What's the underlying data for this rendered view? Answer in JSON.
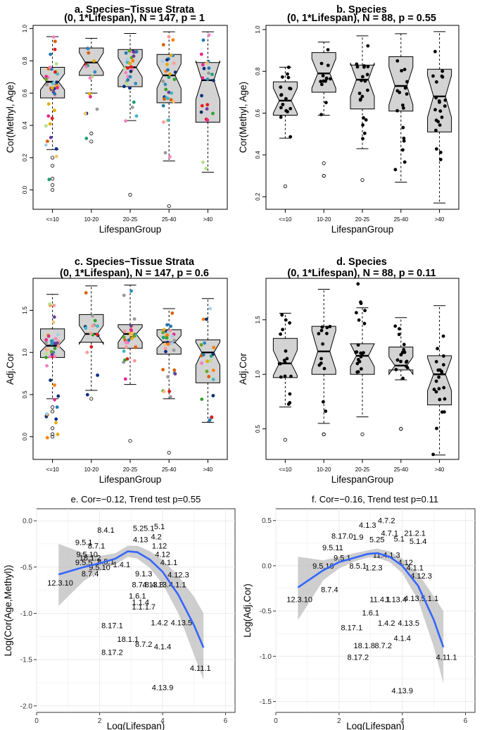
{
  "chart_data": [
    {
      "id": "a",
      "type": "box",
      "title": "a. Species−Tissue Strata",
      "subtitle": "(0, 1*Lifespan), N = 147, p = 1",
      "xlabel": "LifespanGroup",
      "ylabel": "Cor(Methyl, Age)",
      "categories": [
        "<=10",
        "10-20",
        "20-25",
        "25-40",
        ">40"
      ],
      "ylim": [
        -0.12,
        1.02
      ],
      "yticks": [
        "0.0",
        "0.2",
        "0.4",
        "0.6",
        "0.8",
        "1.0"
      ],
      "ytick_values": [
        0,
        0.2,
        0.4,
        0.6,
        0.8,
        1.0
      ],
      "colored": true,
      "boxes": [
        {
          "wlo": 0.25,
          "q1": 0.57,
          "med": 0.67,
          "q3": 0.76,
          "whi": 0.95,
          "nlo": 0.62,
          "nhi": 0.72,
          "n": 45,
          "pmin": -0.02,
          "pmax": 0.95,
          "out": [
            0.2,
            0.15,
            0.07,
            0.03,
            0.0
          ]
        },
        {
          "wlo": 0.6,
          "q1": 0.71,
          "med": 0.79,
          "q3": 0.88,
          "whi": 0.94,
          "nlo": 0.73,
          "nhi": 0.85,
          "n": 16,
          "pmin": 0.3,
          "pmax": 0.94,
          "out": [
            0.35,
            0.3
          ]
        },
        {
          "wlo": 0.43,
          "q1": 0.64,
          "med": 0.76,
          "q3": 0.87,
          "whi": 0.97,
          "nlo": 0.7,
          "nhi": 0.82,
          "n": 30,
          "pmin": 0.4,
          "pmax": 0.97,
          "out": [
            -0.03
          ]
        },
        {
          "wlo": 0.18,
          "q1": 0.54,
          "med": 0.71,
          "q3": 0.84,
          "whi": 0.98,
          "nlo": 0.63,
          "nhi": 0.78,
          "n": 33,
          "pmin": 0.18,
          "pmax": 0.98,
          "out": [
            -0.1
          ]
        },
        {
          "wlo": 0.11,
          "q1": 0.42,
          "med": 0.68,
          "q3": 0.79,
          "whi": 0.98,
          "nlo": 0.56,
          "nhi": 0.8,
          "n": 23,
          "pmin": 0.11,
          "pmax": 0.98,
          "out": []
        }
      ]
    },
    {
      "id": "b",
      "type": "box",
      "title": "b. Species",
      "subtitle": "(0, 1*Lifespan), N = 88, p = 0.55",
      "xlabel": "LifespanGroup",
      "ylabel": "Cor(Methyl, Age)",
      "categories": [
        "<=10",
        "10-20",
        "20-25",
        "25-40",
        ">40"
      ],
      "ylim": [
        0.14,
        1.02
      ],
      "yticks": [
        "0.2",
        "0.4",
        "0.6",
        "0.8",
        "1.0"
      ],
      "ytick_values": [
        0.2,
        0.4,
        0.6,
        0.8,
        1.0
      ],
      "colored": false,
      "boxes": [
        {
          "wlo": 0.48,
          "q1": 0.59,
          "med": 0.66,
          "q3": 0.75,
          "whi": 0.82,
          "nlo": 0.6,
          "nhi": 0.72,
          "n": 17,
          "pmin": 0.48,
          "pmax": 0.82,
          "out": [
            0.25
          ]
        },
        {
          "wlo": 0.59,
          "q1": 0.7,
          "med": 0.79,
          "q3": 0.89,
          "whi": 0.94,
          "nlo": 0.72,
          "nhi": 0.86,
          "n": 13,
          "pmin": 0.59,
          "pmax": 0.94,
          "out": [
            0.36,
            0.3,
            0.3
          ]
        },
        {
          "wlo": 0.43,
          "q1": 0.62,
          "med": 0.76,
          "q3": 0.83,
          "whi": 0.97,
          "nlo": 0.68,
          "nhi": 0.84,
          "n": 20,
          "pmin": 0.43,
          "pmax": 0.97,
          "out": [
            0.28
          ]
        },
        {
          "wlo": 0.27,
          "q1": 0.61,
          "med": 0.73,
          "q3": 0.87,
          "whi": 0.98,
          "nlo": 0.64,
          "nhi": 0.82,
          "n": 17,
          "pmin": 0.27,
          "pmax": 0.98,
          "out": []
        },
        {
          "wlo": 0.17,
          "q1": 0.51,
          "med": 0.68,
          "q3": 0.81,
          "whi": 0.99,
          "nlo": 0.58,
          "nhi": 0.78,
          "n": 21,
          "pmin": 0.17,
          "pmax": 0.99,
          "out": []
        }
      ]
    },
    {
      "id": "c",
      "type": "box",
      "title": "c. Species−Tissue Strata",
      "subtitle": "(0, 1*Lifespan), N = 147, p = 0.6",
      "xlabel": "LifespanGroup",
      "ylabel": "Adj.Cor",
      "categories": [
        "<=10",
        "10-20",
        "20-25",
        "25-40",
        ">40"
      ],
      "ylim": [
        -0.27,
        1.88
      ],
      "yticks": [
        "0.0",
        "0.5",
        "1.0",
        "1.5"
      ],
      "ytick_values": [
        0,
        0.5,
        1.0,
        1.5
      ],
      "colored": true,
      "boxes": [
        {
          "wlo": 0.45,
          "q1": 0.94,
          "med": 1.08,
          "q3": 1.28,
          "whi": 1.69,
          "nlo": 1.01,
          "nhi": 1.16,
          "n": 45,
          "pmin": -0.05,
          "pmax": 1.7,
          "out": [
            0.35,
            0.3,
            0.1,
            0.03,
            0.0
          ]
        },
        {
          "wlo": 0.55,
          "q1": 1.12,
          "med": 1.22,
          "q3": 1.45,
          "whi": 1.79,
          "nlo": 1.1,
          "nhi": 1.32,
          "n": 16,
          "pmin": 0.45,
          "pmax": 1.79,
          "out": [
            0.45
          ]
        },
        {
          "wlo": 0.62,
          "q1": 1.05,
          "med": 1.22,
          "q3": 1.33,
          "whi": 1.8,
          "nlo": 1.12,
          "nhi": 1.3,
          "n": 30,
          "pmin": 0.6,
          "pmax": 1.85,
          "out": [
            -0.05
          ]
        },
        {
          "wlo": 0.45,
          "q1": 0.98,
          "med": 1.12,
          "q3": 1.27,
          "whi": 1.52,
          "nlo": 1.05,
          "nhi": 1.2,
          "n": 33,
          "pmin": 0.45,
          "pmax": 1.52,
          "out": [
            -0.19
          ]
        },
        {
          "wlo": 0.17,
          "q1": 0.64,
          "med": 1.0,
          "q3": 1.15,
          "whi": 1.64,
          "nlo": 0.85,
          "nhi": 1.12,
          "n": 23,
          "pmin": 0.17,
          "pmax": 1.64,
          "out": []
        }
      ]
    },
    {
      "id": "d",
      "type": "box",
      "title": "d. Species",
      "subtitle": "(0, 1*Lifespan), N = 88, p = 0.11",
      "xlabel": "LifespanGroup",
      "ylabel": "Adj.Cor",
      "categories": [
        "<=10",
        "10-20",
        "20-25",
        "25-40",
        ">40"
      ],
      "ylim": [
        0.22,
        1.88
      ],
      "yticks": [
        "0.5",
        "1.0",
        "1.5"
      ],
      "ytick_values": [
        0.5,
        1.0,
        1.5
      ],
      "colored": false,
      "boxes": [
        {
          "wlo": 0.7,
          "q1": 0.97,
          "med": 1.1,
          "q3": 1.33,
          "whi": 1.56,
          "nlo": 0.99,
          "nhi": 1.22,
          "n": 17,
          "pmin": 0.7,
          "pmax": 1.56,
          "out": [
            0.4
          ]
        },
        {
          "wlo": 0.55,
          "q1": 1.0,
          "med": 1.21,
          "q3": 1.44,
          "whi": 1.78,
          "nlo": 1.04,
          "nhi": 1.4,
          "n": 13,
          "pmin": 0.55,
          "pmax": 1.78,
          "out": [
            0.45,
            0.45
          ]
        },
        {
          "wlo": 0.61,
          "q1": 1.0,
          "med": 1.17,
          "q3": 1.28,
          "whi": 1.61,
          "nlo": 1.07,
          "nhi": 1.28,
          "n": 20,
          "pmin": 0.61,
          "pmax": 1.83,
          "out": [
            0.45
          ]
        },
        {
          "wlo": 0.95,
          "q1": 1.04,
          "med": 1.08,
          "q3": 1.25,
          "whi": 1.52,
          "nlo": 1.0,
          "nhi": 1.16,
          "n": 17,
          "pmin": 0.95,
          "pmax": 1.52,
          "out": [
            0.5,
            0.5
          ]
        },
        {
          "wlo": 0.26,
          "q1": 0.72,
          "med": 1.0,
          "q3": 1.17,
          "whi": 1.63,
          "nlo": 0.85,
          "nhi": 1.15,
          "n": 21,
          "pmin": 0.26,
          "pmax": 1.63,
          "out": []
        }
      ]
    },
    {
      "id": "e",
      "type": "scatter",
      "title": "e. Cor=−0.12, Trend test p=0.55",
      "xlabel": "Log(Lifespan)",
      "ylabel": "Log(Cor(Age,Methyl))",
      "xlim": [
        0,
        6.3
      ],
      "ylim": [
        -2.07,
        0.13
      ],
      "xticks": [
        "0",
        "2",
        "4",
        "6"
      ],
      "xtick_values": [
        0,
        2,
        4,
        6
      ],
      "yticks": [
        "0.0",
        "-0.5",
        "-1.0",
        "-1.5",
        "-2.0"
      ],
      "ytick_values": [
        0,
        -0.5,
        -1.0,
        -1.5,
        -2.0
      ],
      "fit": [
        [
          0.7,
          -0.58
        ],
        [
          1.5,
          -0.5
        ],
        [
          2.0,
          -0.46
        ],
        [
          2.5,
          -0.41
        ],
        [
          2.9,
          -0.33
        ],
        [
          3.2,
          -0.34
        ],
        [
          3.6,
          -0.42
        ],
        [
          4.0,
          -0.55
        ],
        [
          4.5,
          -0.8
        ],
        [
          5.0,
          -1.13
        ],
        [
          5.3,
          -1.37
        ]
      ],
      "band_upper": [
        [
          0.7,
          -0.25
        ],
        [
          1.5,
          -0.35
        ],
        [
          2.0,
          -0.38
        ],
        [
          2.5,
          -0.35
        ],
        [
          2.9,
          -0.27
        ],
        [
          3.2,
          -0.27
        ],
        [
          3.6,
          -0.33
        ],
        [
          4.0,
          -0.42
        ],
        [
          4.5,
          -0.6
        ],
        [
          5.0,
          -0.82
        ],
        [
          5.3,
          -1.0
        ]
      ],
      "band_lower": [
        [
          0.7,
          -0.92
        ],
        [
          1.5,
          -0.65
        ],
        [
          2.0,
          -0.54
        ],
        [
          2.5,
          -0.47
        ],
        [
          2.9,
          -0.39
        ],
        [
          3.2,
          -0.41
        ],
        [
          3.6,
          -0.51
        ],
        [
          4.0,
          -0.68
        ],
        [
          4.5,
          -1.0
        ],
        [
          5.0,
          -1.45
        ],
        [
          5.3,
          -1.72
        ]
      ],
      "labels": [
        {
          "text": "12.3.10",
          "x": 0.75,
          "y": -0.67
        },
        {
          "text": "8.7.4",
          "x": 1.7,
          "y": -0.57
        },
        {
          "text": "9.5.1",
          "x": 1.5,
          "y": -0.23
        },
        {
          "text": "8.4.1",
          "x": 2.2,
          "y": -0.1
        },
        {
          "text": "8.7.1",
          "x": 1.9,
          "y": -0.27
        },
        {
          "text": "9.5.10",
          "x": 1.6,
          "y": -0.36
        },
        {
          "text": "9.5.5",
          "x": 1.5,
          "y": -0.45
        },
        {
          "text": "8.5.1",
          "x": 2.2,
          "y": -0.44
        },
        {
          "text": "18.1.2",
          "x": 1.7,
          "y": -0.4
        },
        {
          "text": "9.5.10",
          "x": 2.0,
          "y": -0.5
        },
        {
          "text": "1.4.1",
          "x": 2.7,
          "y": -0.47
        },
        {
          "text": "5.25.1",
          "x": 3.4,
          "y": -0.08
        },
        {
          "text": "5.1",
          "x": 3.9,
          "y": -0.06
        },
        {
          "text": "4.2",
          "x": 3.8,
          "y": -0.17
        },
        {
          "text": "4.13",
          "x": 3.3,
          "y": -0.2
        },
        {
          "text": "1.12",
          "x": 3.9,
          "y": -0.27
        },
        {
          "text": "4.12",
          "x": 4.0,
          "y": -0.36
        },
        {
          "text": "4.1.1",
          "x": 4.2,
          "y": -0.45
        },
        {
          "text": "4.12.3",
          "x": 4.5,
          "y": -0.58
        },
        {
          "text": "4.13.4.1.1",
          "x": 4.2,
          "y": -0.69
        },
        {
          "text": "4.13.8",
          "x": 3.7,
          "y": -0.69
        },
        {
          "text": "8.7.8",
          "x": 3.3,
          "y": -0.69
        },
        {
          "text": "9.1.3",
          "x": 3.4,
          "y": -0.57
        },
        {
          "text": "1.6.1",
          "x": 3.2,
          "y": -0.81
        },
        {
          "text": "1.1.4",
          "x": 3.3,
          "y": -0.88
        },
        {
          "text": "1.1.1.7",
          "x": 3.4,
          "y": -0.93
        },
        {
          "text": "8.17.1",
          "x": 2.4,
          "y": -1.13
        },
        {
          "text": "1.4.2",
          "x": 3.9,
          "y": -1.1
        },
        {
          "text": "4.13.5",
          "x": 4.6,
          "y": -1.1
        },
        {
          "text": "18.1.1",
          "x": 2.9,
          "y": -1.28
        },
        {
          "text": "8.7.2",
          "x": 3.4,
          "y": -1.33
        },
        {
          "text": "4.1.4",
          "x": 4.0,
          "y": -1.36
        },
        {
          "text": "8.17.2",
          "x": 2.4,
          "y": -1.42
        },
        {
          "text": "4.11.1",
          "x": 5.2,
          "y": -1.59
        },
        {
          "text": "4.13.9",
          "x": 4.0,
          "y": -1.8
        }
      ]
    },
    {
      "id": "f",
      "type": "scatter",
      "title": "f. Cor=−0.16, Trend test p=0.11",
      "xlabel": "Log(Lifespan)",
      "ylabel": "Log(Adj.Cor)",
      "xlim": [
        0,
        6.3
      ],
      "ylim": [
        -1.62,
        0.63
      ],
      "xticks": [
        "0",
        "2",
        "4",
        "6"
      ],
      "xtick_values": [
        0,
        2,
        4,
        6
      ],
      "yticks": [
        "0.5",
        "0.0",
        "-0.5",
        "-1.0",
        "-1.5"
      ],
      "ytick_values": [
        0.5,
        0,
        -0.5,
        -1.0,
        -1.5
      ],
      "fit": [
        [
          0.7,
          -0.24
        ],
        [
          1.5,
          -0.05
        ],
        [
          2.0,
          0.04
        ],
        [
          2.5,
          0.09
        ],
        [
          2.9,
          0.13
        ],
        [
          3.2,
          0.14
        ],
        [
          3.6,
          0.1
        ],
        [
          4.0,
          0.0
        ],
        [
          4.5,
          -0.22
        ],
        [
          5.0,
          -0.6
        ],
        [
          5.3,
          -0.9
        ]
      ],
      "band_upper": [
        [
          0.7,
          0.1
        ],
        [
          1.5,
          0.06
        ],
        [
          2.0,
          0.1
        ],
        [
          2.5,
          0.14
        ],
        [
          2.9,
          0.17
        ],
        [
          3.2,
          0.19
        ],
        [
          3.6,
          0.16
        ],
        [
          4.0,
          0.08
        ],
        [
          4.5,
          -0.08
        ],
        [
          5.0,
          -0.34
        ],
        [
          5.3,
          -0.5
        ]
      ],
      "band_lower": [
        [
          0.7,
          -0.6
        ],
        [
          1.5,
          -0.16
        ],
        [
          2.0,
          -0.03
        ],
        [
          2.5,
          0.05
        ],
        [
          2.9,
          0.09
        ],
        [
          3.2,
          0.09
        ],
        [
          3.6,
          0.04
        ],
        [
          4.0,
          -0.08
        ],
        [
          4.5,
          -0.38
        ],
        [
          5.0,
          -0.9
        ],
        [
          5.3,
          -1.3
        ]
      ],
      "labels": [
        {
          "text": "12.3.10",
          "x": 0.75,
          "y": -0.37
        },
        {
          "text": "8.7.4",
          "x": 1.7,
          "y": -0.26
        },
        {
          "text": "4.7.2",
          "x": 3.5,
          "y": 0.5
        },
        {
          "text": "4.1.3",
          "x": 2.9,
          "y": 0.45
        },
        {
          "text": "4.7.1",
          "x": 3.6,
          "y": 0.36
        },
        {
          "text": "21.2.1",
          "x": 4.4,
          "y": 0.36
        },
        {
          "text": "8.17.0",
          "x": 2.1,
          "y": 0.33
        },
        {
          "text": "1.9",
          "x": 2.6,
          "y": 0.32
        },
        {
          "text": "5.25",
          "x": 3.2,
          "y": 0.29
        },
        {
          "text": "5.1",
          "x": 3.9,
          "y": 0.3
        },
        {
          "text": "5.1.4",
          "x": 4.5,
          "y": 0.27
        },
        {
          "text": "9.5.11",
          "x": 1.8,
          "y": 0.2
        },
        {
          "text": "9.5.1",
          "x": 2.1,
          "y": 0.09
        },
        {
          "text": "11.4.1.3",
          "x": 3.5,
          "y": 0.12
        },
        {
          "text": "4.12",
          "x": 4.1,
          "y": 0.04
        },
        {
          "text": "4.1.1",
          "x": 4.4,
          "y": -0.02
        },
        {
          "text": "4.12.3",
          "x": 4.6,
          "y": -0.11
        },
        {
          "text": "9.5.10",
          "x": 1.5,
          "y": 0.0
        },
        {
          "text": "8.5.1",
          "x": 2.6,
          "y": 0.0
        },
        {
          "text": "1.2.3",
          "x": 3.1,
          "y": -0.02
        },
        {
          "text": "4.13.5.1.1",
          "x": 4.6,
          "y": -0.36
        },
        {
          "text": "11.4.1",
          "x": 3.3,
          "y": -0.37
        },
        {
          "text": "1.13.4",
          "x": 3.8,
          "y": -0.37
        },
        {
          "text": "1.6.1",
          "x": 3.0,
          "y": -0.52
        },
        {
          "text": "1.4.2",
          "x": 3.5,
          "y": -0.63
        },
        {
          "text": "4.13.5",
          "x": 4.2,
          "y": -0.63
        },
        {
          "text": "8.17.1",
          "x": 2.4,
          "y": -0.68
        },
        {
          "text": "4.1.4",
          "x": 4.0,
          "y": -0.8
        },
        {
          "text": "18.1.8",
          "x": 2.8,
          "y": -0.88
        },
        {
          "text": "8.7.2",
          "x": 3.4,
          "y": -0.88
        },
        {
          "text": "8.17.2",
          "x": 2.6,
          "y": -1.01
        },
        {
          "text": "4.11.1",
          "x": 5.4,
          "y": -1.01
        },
        {
          "text": "4.13.9",
          "x": 4.0,
          "y": -1.38
        }
      ]
    }
  ]
}
